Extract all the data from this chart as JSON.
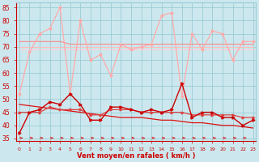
{
  "xlabel": "Vent moyen/en rafales ( km/h )",
  "background_color": "#cce8ee",
  "grid_color": "#99ccd6",
  "x": [
    0,
    1,
    2,
    3,
    4,
    5,
    6,
    7,
    8,
    9,
    10,
    11,
    12,
    13,
    14,
    15,
    16,
    17,
    18,
    19,
    20,
    21,
    22,
    23
  ],
  "wind_gust": [
    52,
    68,
    75,
    77,
    85,
    52,
    80,
    65,
    67,
    59,
    71,
    69,
    70,
    71,
    82,
    83,
    51,
    75,
    69,
    76,
    75,
    65,
    72,
    72
  ],
  "wind_avg": [
    37,
    45,
    46,
    49,
    48,
    52,
    48,
    42,
    42,
    47,
    47,
    46,
    45,
    46,
    45,
    46,
    56,
    43,
    45,
    45,
    43,
    43,
    40,
    42
  ],
  "wind_avg_trend": [
    48,
    47.5,
    47,
    46.5,
    46,
    45.5,
    45,
    44.5,
    44,
    43.5,
    43,
    43,
    43,
    42.5,
    42,
    42,
    41.5,
    41,
    41,
    40.5,
    40,
    40,
    39.5,
    39
  ],
  "gust_trend": [
    72,
    72,
    72,
    72,
    72,
    71,
    71,
    71,
    71,
    71,
    71,
    71,
    71,
    71,
    71,
    71,
    71,
    71,
    71,
    71,
    71,
    71,
    71,
    71
  ],
  "gust_flat1": [
    70,
    70,
    70,
    70,
    70,
    70,
    70,
    70,
    70,
    70,
    70,
    70,
    70,
    70,
    70,
    70,
    70,
    70,
    70,
    70,
    70,
    70,
    70,
    70
  ],
  "gust_flat2": [
    69,
    69,
    69,
    69,
    69,
    69,
    69,
    69,
    69,
    69,
    69,
    69,
    69,
    69,
    69,
    69,
    69,
    69,
    69,
    69,
    69,
    69,
    69,
    69
  ],
  "wind_avg2": [
    45,
    45,
    45,
    47,
    46,
    46,
    46,
    44,
    44,
    46,
    46,
    46,
    45,
    45,
    45,
    45,
    45,
    44,
    44,
    44,
    44,
    44,
    43,
    43
  ],
  "ylim": [
    34,
    87
  ],
  "yticks": [
    35,
    40,
    45,
    50,
    55,
    60,
    65,
    70,
    75,
    80,
    85
  ],
  "arrow_color": "#dd2222",
  "line_avg_color": "#cc0000",
  "line_gust_color": "#ffaaaa",
  "line_trend_color": "#dd1111",
  "line_flat1_color": "#ffbbbb",
  "line_flat2_color": "#ffcccc",
  "line_avg2_color": "#dd4444",
  "gust_trend_color": "#ff8888"
}
